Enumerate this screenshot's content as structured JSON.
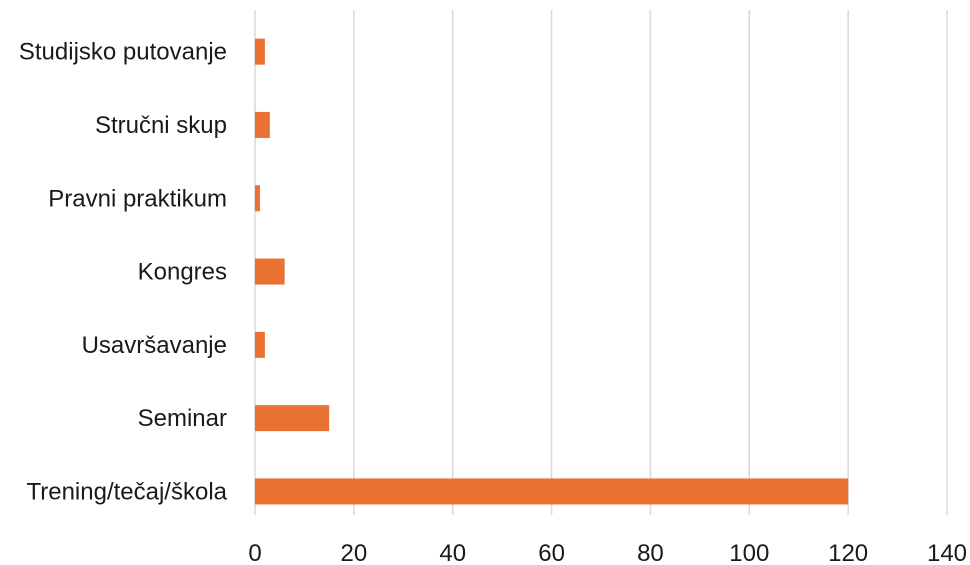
{
  "chart_data": {
    "type": "bar",
    "orientation": "horizontal",
    "categories": [
      "Studijsko putovanje",
      "Stručni skup",
      "Pravni praktikum",
      "Kongres",
      "Usavršavanje",
      "Seminar",
      "Trening/tečaj/škola"
    ],
    "values": [
      2,
      3,
      1,
      6,
      2,
      15,
      120
    ],
    "xlim": [
      0,
      140
    ],
    "xticks": [
      "0",
      "20",
      "40",
      "60",
      "80",
      "100",
      "120",
      "140"
    ],
    "xtick_values": [
      0,
      20,
      40,
      60,
      80,
      100,
      120,
      140
    ],
    "grid": true,
    "bar_color": "#E97132"
  }
}
